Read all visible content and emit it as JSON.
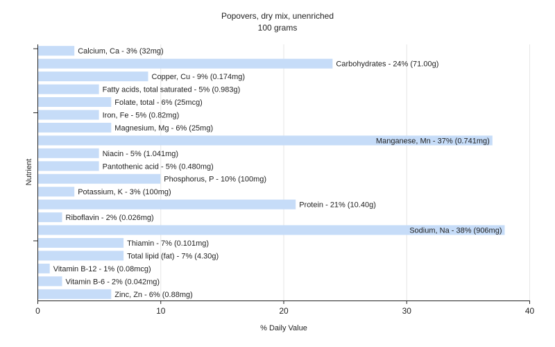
{
  "chart_data": {
    "type": "bar",
    "orientation": "horizontal",
    "title": "Popovers, dry mix, unenriched",
    "subtitle": "100 grams",
    "xlabel": "% Daily Value",
    "ylabel": "Nutrient",
    "xlim": [
      0,
      40
    ],
    "xticks": [
      0,
      10,
      20,
      30,
      40
    ],
    "grid": true,
    "bar_color": "#c6dcf8",
    "categories": [
      "Calcium, Ca",
      "Carbohydrates",
      "Copper, Cu",
      "Fatty acids, total saturated",
      "Folate, total",
      "Iron, Fe",
      "Magnesium, Mg",
      "Manganese, Mn",
      "Niacin",
      "Pantothenic acid",
      "Phosphorus, P",
      "Potassium, K",
      "Protein",
      "Riboflavin",
      "Sodium, Na",
      "Thiamin",
      "Total lipid (fat)",
      "Vitamin B-12",
      "Vitamin B-6",
      "Zinc, Zn"
    ],
    "values": [
      3,
      24,
      9,
      5,
      6,
      5,
      6,
      37,
      5,
      5,
      10,
      3,
      21,
      2,
      38,
      7,
      7,
      1,
      2,
      6
    ],
    "labels": [
      "Calcium, Ca - 3% (32mg)",
      "Carbohydrates - 24% (71.00g)",
      "Copper, Cu - 9% (0.174mg)",
      "Fatty acids, total saturated - 5% (0.983g)",
      "Folate, total - 6% (25mcg)",
      "Iron, Fe - 5% (0.82mg)",
      "Magnesium, Mg - 6% (25mg)",
      "Manganese, Mn - 37% (0.741mg)",
      "Niacin - 5% (1.041mg)",
      "Pantothenic acid - 5% (0.480mg)",
      "Phosphorus, P - 10% (100mg)",
      "Potassium, K - 3% (100mg)",
      "Protein - 21% (10.40g)",
      "Riboflavin - 2% (0.026mg)",
      "Sodium, Na - 38% (906mg)",
      "Thiamin - 7% (0.101mg)",
      "Total lipid (fat) - 7% (4.30g)",
      "Vitamin B-12 - 1% (0.08mcg)",
      "Vitamin B-6 - 2% (0.042mg)",
      "Zinc, Zn - 6% (0.88mg)"
    ]
  }
}
